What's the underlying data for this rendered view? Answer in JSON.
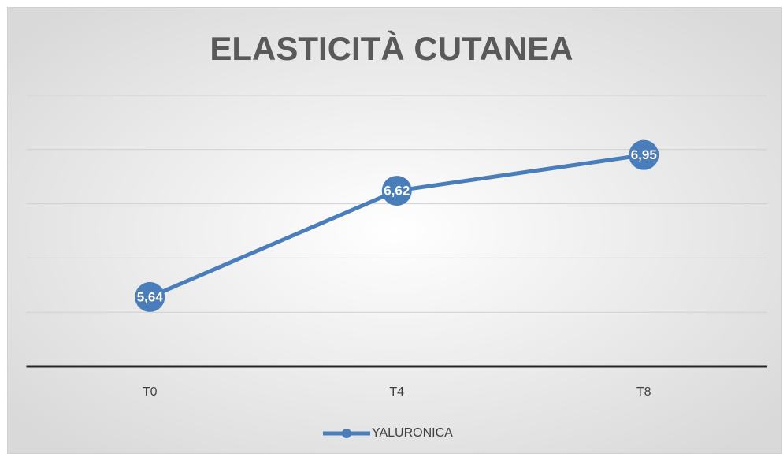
{
  "chart_data": {
    "type": "line",
    "title": "ELASTICITÀ CUTANEA",
    "categories": [
      "T0",
      "T4",
      "T8"
    ],
    "series": [
      {
        "name": "YALURONICA",
        "color": "#4a7ebb",
        "values": [
          5.64,
          6.62,
          6.95
        ],
        "value_labels": [
          "5,64",
          "6,62",
          "6,95"
        ]
      }
    ],
    "ylim": [
      5,
      7.5
    ],
    "yticks": [
      5,
      5.5,
      6,
      6.5,
      7,
      7.5
    ],
    "grid": true,
    "legend": "bottom"
  }
}
